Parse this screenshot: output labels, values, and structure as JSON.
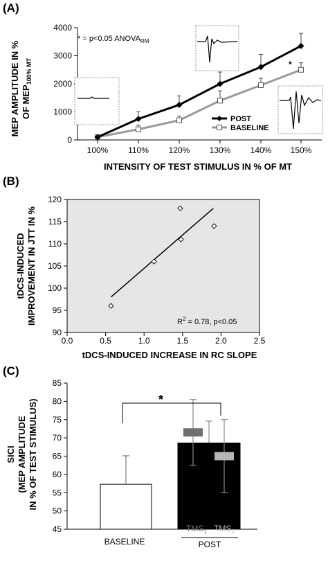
{
  "chart_data": [
    {
      "panel": "(A)",
      "type": "line",
      "xlabel": "INTENSITY OF TEST STIMULUS IN % OF MT",
      "ylabel_main": "MEP AMPLITUDE IN %",
      "ylabel_of": "OF MEP",
      "ylabel_sub": "100% MT",
      "categories": [
        "100%",
        "110%",
        "120%",
        "130%",
        "140%",
        "150%"
      ],
      "yticks": [
        0,
        1000,
        2000,
        3000,
        4000
      ],
      "ylim": [
        0,
        4000
      ],
      "series": [
        {
          "name": "POST",
          "color": "#000000",
          "marker": "filled-diamond",
          "values": [
            100,
            750,
            1250,
            2000,
            2600,
            3350
          ],
          "errors": [
            0,
            250,
            320,
            420,
            450,
            450
          ]
        },
        {
          "name": "BASELINE",
          "color": "#9a9a9a",
          "marker": "open-square",
          "values": [
            100,
            380,
            700,
            1400,
            1950,
            2500
          ],
          "errors": [
            0,
            150,
            150,
            350,
            250,
            250
          ]
        }
      ],
      "stats_note_prefix": "* = p<0.05 ANOVA",
      "stats_note_sub": "RM",
      "sig_marker": "*"
    },
    {
      "panel": "(B)",
      "type": "scatter",
      "xlabel": "tDCS-INDUCED INCREASE IN RC SLOPE",
      "ylabel_line1": "tDCS-INDUCED",
      "ylabel_line2": "IMPROVEMENT IN JTT IN %",
      "xticks": [
        "0.0",
        "0.5",
        "1.0",
        "1.5",
        "2.0",
        "2.5"
      ],
      "yticks": [
        "90",
        "95",
        "100",
        "105",
        "110",
        "115",
        "120"
      ],
      "xlim": [
        0,
        2.5
      ],
      "ylim": [
        90,
        120
      ],
      "points": [
        {
          "x": 0.57,
          "y": 96
        },
        {
          "x": 1.13,
          "y": 106
        },
        {
          "x": 1.47,
          "y": 118
        },
        {
          "x": 1.48,
          "y": 111
        },
        {
          "x": 1.91,
          "y": 114
        }
      ],
      "fit_line": [
        {
          "x": 0.57,
          "y": 98
        },
        {
          "x": 1.9,
          "y": 118
        }
      ],
      "r2_label": "R",
      "r2_sup": "2",
      "r2_rest": " = 0.78, p<0.05",
      "background": "#e6e6e6"
    },
    {
      "panel": "(C)",
      "type": "bar",
      "ylabel_line1": "SICI",
      "ylabel_line2": "(MEP AMPLITUDE",
      "ylabel_line3": "IN % OF TEST STIMULUS)",
      "yticks": [
        "45",
        "50",
        "55",
        "60",
        "65",
        "70",
        "75",
        "80",
        "85"
      ],
      "ylim": [
        45,
        85
      ],
      "categories": [
        "BASELINE",
        "POST"
      ],
      "values": [
        57.3,
        68.6
      ],
      "errors": [
        7.8,
        6.0
      ],
      "bar_colors": [
        "#ffffff",
        "#000000"
      ],
      "sub_bars": [
        {
          "label": "TMS",
          "sub": "1",
          "color": "#6f6f6f",
          "value": 71.5,
          "error": 9.0
        },
        {
          "label": "TMS",
          "sub": "2",
          "color": "#b5b5b5",
          "value": 65.0,
          "error": 10.0
        }
      ],
      "sig_marker": "*"
    }
  ]
}
